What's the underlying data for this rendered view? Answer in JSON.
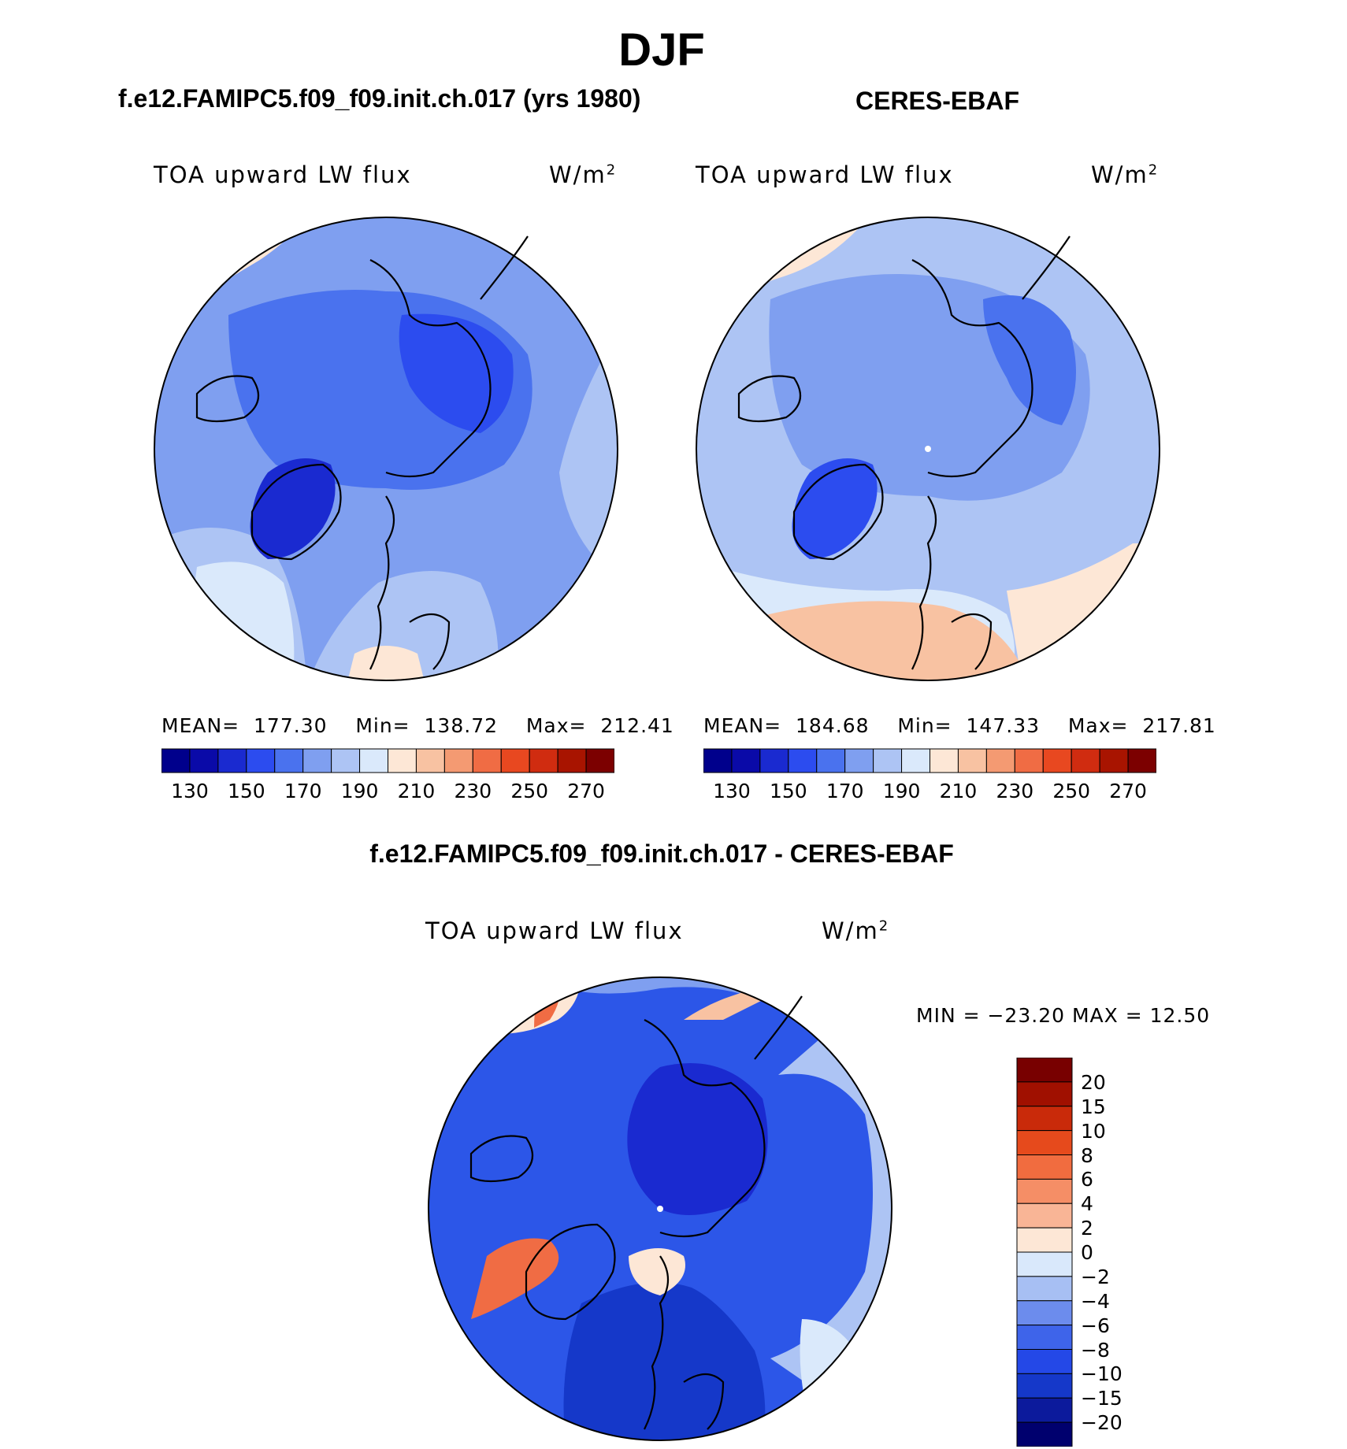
{
  "header": {
    "season": "DJF",
    "left_title": "f.e12.FAMIPC5.f09_f09.init.ch.017 (yrs 1980)",
    "right_title": "CERES-EBAF",
    "diff_title": "f.e12.FAMIPC5.f09_f09.init.ch.017 - CERES-EBAF"
  },
  "panels": {
    "model": {
      "variable": "TOA upward LW flux",
      "units_base": "W/m",
      "units_exp": "2",
      "mean_label": "MEAN=",
      "mean": "177.30",
      "min_label": "Min=",
      "min": "138.72",
      "max_label": "Max=",
      "max": "212.41"
    },
    "obs": {
      "variable": "TOA upward LW flux",
      "units_base": "W/m",
      "units_exp": "2",
      "mean_label": "MEAN=",
      "mean": "184.68",
      "min_label": "Min=",
      "min": "147.33",
      "max_label": "Max=",
      "max": "217.81"
    },
    "diff": {
      "variable": "TOA upward LW flux",
      "units_base": "W/m",
      "units_exp": "2",
      "minmax_text": "MIN = −23.20 MAX =   12.50"
    }
  },
  "colorbars": {
    "abs_colors": [
      "#00008c",
      "#0a0aa8",
      "#1a2ad0",
      "#2c4cef",
      "#4a72ee",
      "#7f9ff0",
      "#adc4f4",
      "#dae9fb",
      "#fde7d6",
      "#f8c2a2",
      "#f49a72",
      "#f06c44",
      "#e84820",
      "#d02c10",
      "#a81400",
      "#7c0000"
    ],
    "abs_ticks": [
      "130",
      "150",
      "170",
      "190",
      "210",
      "230",
      "250",
      "270"
    ],
    "diff_colors": [
      "#00006e",
      "#0c1a9c",
      "#1538c9",
      "#2448e7",
      "#3e64ea",
      "#6c8ced",
      "#a7bff3",
      "#d9e8fb",
      "#fde7d6",
      "#f9b596",
      "#f58e66",
      "#f16c3f",
      "#e64a1c",
      "#c92a0a",
      "#a01000",
      "#780000"
    ],
    "diff_ticks": [
      "20",
      "15",
      "10",
      "8",
      "6",
      "4",
      "2",
      "0",
      "−2",
      "−4",
      "−6",
      "−8",
      "−10",
      "−15",
      "−20"
    ]
  },
  "map_colors": {
    "model_base": "#7f9ff0",
    "obs_base": "#adc4f4",
    "diff_base": "#2c56e8",
    "deep": "#2c4cef",
    "deeper": "#1a2ad0",
    "light": "#dae9fb",
    "warm": "#fde7d6",
    "warm2": "#f8c2a2",
    "orange": "#f06c44"
  }
}
